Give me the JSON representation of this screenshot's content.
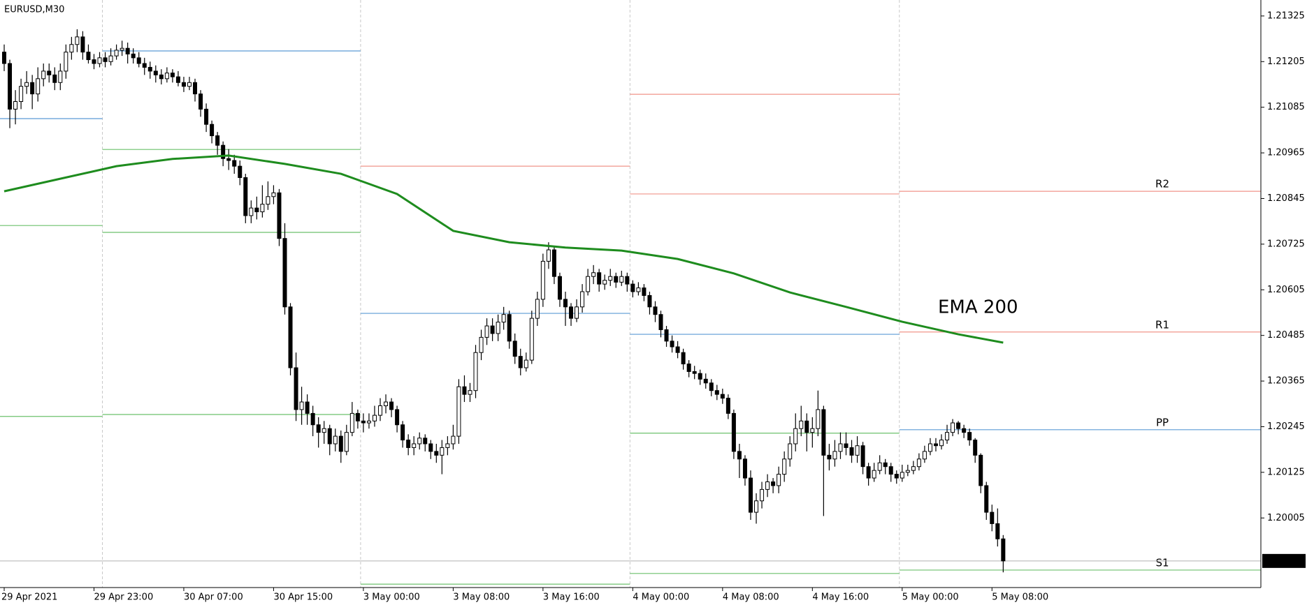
{
  "chart_data": {
    "type": "candlestick",
    "title": "EURUSD,M30",
    "up_color": "#ffffff",
    "down_color": "#000000",
    "outline": "#000000",
    "ylim": [
      1.19822,
      1.21367
    ],
    "yticks": [
      1.21325,
      1.21205,
      1.21085,
      1.20965,
      1.20845,
      1.20725,
      1.20605,
      1.20485,
      1.20365,
      1.20245,
      1.20125,
      1.20005
    ],
    "xticks": [
      {
        "value": 0,
        "label": "29 Apr 2021"
      },
      {
        "value": 16,
        "label": "29 Apr 23:00"
      },
      {
        "value": 32,
        "label": "30 Apr 07:00"
      },
      {
        "value": 48,
        "label": "30 Apr 15:00"
      },
      {
        "value": 64,
        "label": "3 May 00:00"
      },
      {
        "value": 80,
        "label": "3 May 08:00"
      },
      {
        "value": 96,
        "label": "3 May 16:00"
      },
      {
        "value": 112,
        "label": "4 May 00:00"
      },
      {
        "value": 128,
        "label": "4 May 08:00"
      },
      {
        "value": 144,
        "label": "4 May 16:00"
      },
      {
        "value": 160,
        "label": "5 May 00:00"
      },
      {
        "value": 176,
        "label": "5 May 08:00"
      }
    ],
    "separators": [
      18,
      64,
      112,
      160
    ],
    "bid": 1.19892,
    "ema": {
      "name": "EMA 200",
      "color": "#1e8c1e",
      "x": [
        0,
        10,
        20,
        30,
        40,
        50,
        60,
        70,
        80,
        90,
        100,
        110,
        120,
        130,
        140,
        150,
        160,
        170,
        178
      ],
      "values": [
        1.20864,
        1.20897,
        1.2093,
        1.20949,
        1.20958,
        1.20936,
        1.2091,
        1.20857,
        1.2076,
        1.2073,
        1.20716,
        1.20708,
        1.20686,
        1.20648,
        1.20598,
        1.2056,
        1.20521,
        1.20488,
        1.20466
      ]
    },
    "pivots": [
      {
        "from": 0,
        "to": 18,
        "value": 1.21055,
        "color": "#5b9bd5"
      },
      {
        "from": 0,
        "to": 18,
        "value": 1.20774,
        "color": "#6cc06c"
      },
      {
        "from": 0,
        "to": 18,
        "value": 1.20272,
        "color": "#6cc06c"
      },
      {
        "from": 18,
        "to": 64,
        "value": 1.21233,
        "color": "#5b9bd5"
      },
      {
        "from": 18,
        "to": 64,
        "value": 1.20974,
        "color": "#6cc06c"
      },
      {
        "from": 18,
        "to": 64,
        "value": 1.20756,
        "color": "#6cc06c"
      },
      {
        "from": 18,
        "to": 64,
        "value": 1.20277,
        "color": "#6cc06c"
      },
      {
        "from": 64,
        "to": 112,
        "value": 1.2093,
        "color": "#f0948a"
      },
      {
        "from": 64,
        "to": 112,
        "value": 1.20543,
        "color": "#5b9bd5"
      },
      {
        "from": 64,
        "to": 112,
        "value": 1.19831,
        "color": "#6cc06c"
      },
      {
        "from": 112,
        "to": 160,
        "value": 1.21119,
        "color": "#f0948a"
      },
      {
        "from": 112,
        "to": 160,
        "value": 1.20857,
        "color": "#f0948a"
      },
      {
        "from": 112,
        "to": 160,
        "value": 1.20488,
        "color": "#5b9bd5"
      },
      {
        "from": 112,
        "to": 160,
        "value": 1.20228,
        "color": "#6cc06c"
      },
      {
        "from": 112,
        "to": 160,
        "value": 1.19859,
        "color": "#6cc06c"
      },
      {
        "from": 160,
        "value": 1.20864,
        "color": "#f0948a",
        "name": "R2"
      },
      {
        "from": 160,
        "value": 1.20494,
        "color": "#f0948a",
        "name": "R1"
      },
      {
        "from": 160,
        "value": 1.20237,
        "color": "#5b9bd5",
        "name": "PP"
      },
      {
        "from": 160,
        "value": 1.19868,
        "color": "#6cc06c",
        "name": "S1"
      }
    ],
    "candles": [
      [
        1.2123,
        1.2125,
        1.2118,
        1.212
      ],
      [
        1.212,
        1.2121,
        1.2103,
        1.2108
      ],
      [
        1.2108,
        1.2113,
        1.2104,
        1.211
      ],
      [
        1.211,
        1.2116,
        1.2108,
        1.2114
      ],
      [
        1.2114,
        1.2118,
        1.2112,
        1.2115
      ],
      [
        1.2115,
        1.2117,
        1.2108,
        1.2112
      ],
      [
        1.2112,
        1.2119,
        1.211,
        1.2116
      ],
      [
        1.2116,
        1.212,
        1.2114,
        1.2118
      ],
      [
        1.2118,
        1.212,
        1.2115,
        1.2117
      ],
      [
        1.2117,
        1.2119,
        1.2113,
        1.2115
      ],
      [
        1.2115,
        1.212,
        1.2113,
        1.2118
      ],
      [
        1.2118,
        1.2125,
        1.2116,
        1.2123
      ],
      [
        1.2123,
        1.2127,
        1.2121,
        1.2125
      ],
      [
        1.2125,
        1.2129,
        1.2123,
        1.2127
      ],
      [
        1.2127,
        1.21285,
        1.2121,
        1.2123
      ],
      [
        1.2123,
        1.2125,
        1.212,
        1.2121
      ],
      [
        1.2121,
        1.21225,
        1.21185,
        1.212
      ],
      [
        1.212,
        1.2123,
        1.2119,
        1.21215
      ],
      [
        1.21215,
        1.2123,
        1.2119,
        1.21205
      ],
      [
        1.21205,
        1.2124,
        1.21195,
        1.2122
      ],
      [
        1.2122,
        1.2125,
        1.2121,
        1.21235
      ],
      [
        1.21235,
        1.2126,
        1.2122,
        1.2124
      ],
      [
        1.2124,
        1.21255,
        1.212,
        1.21225
      ],
      [
        1.21225,
        1.2124,
        1.212,
        1.21215
      ],
      [
        1.21215,
        1.2123,
        1.2119,
        1.212
      ],
      [
        1.212,
        1.21215,
        1.2117,
        1.2119
      ],
      [
        1.2119,
        1.21205,
        1.2116,
        1.2118
      ],
      [
        1.2118,
        1.21195,
        1.2115,
        1.2117
      ],
      [
        1.2117,
        1.21185,
        1.21145,
        1.2116
      ],
      [
        1.2116,
        1.2119,
        1.2115,
        1.21175
      ],
      [
        1.21175,
        1.21185,
        1.2115,
        1.21165
      ],
      [
        1.21165,
        1.2118,
        1.2114,
        1.2115
      ],
      [
        1.2115,
        1.21165,
        1.21125,
        1.2114
      ],
      [
        1.2114,
        1.21165,
        1.2113,
        1.2115
      ],
      [
        1.2115,
        1.2116,
        1.211,
        1.2112
      ],
      [
        1.2112,
        1.2113,
        1.2106,
        1.2108
      ],
      [
        1.2108,
        1.21095,
        1.2102,
        1.2104
      ],
      [
        1.2104,
        1.2105,
        1.2099,
        1.2101
      ],
      [
        1.2101,
        1.2102,
        1.2096,
        1.20985
      ],
      [
        1.20985,
        1.20995,
        1.2093,
        1.2095
      ],
      [
        1.2095,
        1.20975,
        1.2092,
        1.20945
      ],
      [
        1.20945,
        1.2096,
        1.2091,
        1.2093
      ],
      [
        1.2093,
        1.20945,
        1.2088,
        1.209
      ],
      [
        1.209,
        1.2091,
        1.2078,
        1.208
      ],
      [
        1.208,
        1.2084,
        1.2078,
        1.2082
      ],
      [
        1.2082,
        1.2085,
        1.2079,
        1.2081
      ],
      [
        1.2081,
        1.2088,
        1.20795,
        1.2083
      ],
      [
        1.2083,
        1.2089,
        1.20815,
        1.2085
      ],
      [
        1.2085,
        1.2088,
        1.2083,
        1.2086
      ],
      [
        1.2086,
        1.2087,
        1.2072,
        1.2074
      ],
      [
        1.2074,
        1.2078,
        1.2054,
        1.2056
      ],
      [
        1.2056,
        1.2057,
        1.2038,
        1.204
      ],
      [
        1.204,
        1.2044,
        1.2026,
        1.2029
      ],
      [
        1.2029,
        1.2035,
        1.2025,
        1.2031
      ],
      [
        1.2031,
        1.2033,
        1.2025,
        1.2028
      ],
      [
        1.2028,
        1.203,
        1.2022,
        1.2025
      ],
      [
        1.2025,
        1.2027,
        1.2019,
        1.2023
      ],
      [
        1.2023,
        1.2026,
        1.202,
        1.2024
      ],
      [
        1.2024,
        1.2025,
        1.2017,
        1.202
      ],
      [
        1.202,
        1.2024,
        1.2018,
        1.2022
      ],
      [
        1.2022,
        1.20235,
        1.2015,
        1.2018
      ],
      [
        1.2018,
        1.2025,
        1.2017,
        1.2023
      ],
      [
        1.2023,
        1.2031,
        1.2022,
        1.2028
      ],
      [
        1.2028,
        1.2029,
        1.2024,
        1.2026
      ],
      [
        1.2026,
        1.2028,
        1.2023,
        1.20255
      ],
      [
        1.20255,
        1.2028,
        1.2024,
        1.2026
      ],
      [
        1.2026,
        1.203,
        1.20245,
        1.20275
      ],
      [
        1.20275,
        1.2032,
        1.2026,
        1.203
      ],
      [
        1.203,
        1.2033,
        1.2028,
        1.2031
      ],
      [
        1.2031,
        1.2032,
        1.2027,
        1.2029
      ],
      [
        1.2029,
        1.203,
        1.2023,
        1.2025
      ],
      [
        1.2025,
        1.2026,
        1.2019,
        1.2021
      ],
      [
        1.2021,
        1.20225,
        1.2017,
        1.2019
      ],
      [
        1.2019,
        1.2022,
        1.2017,
        1.202
      ],
      [
        1.202,
        1.2023,
        1.20185,
        1.20215
      ],
      [
        1.20215,
        1.20225,
        1.2018,
        1.202
      ],
      [
        1.202,
        1.2021,
        1.2016,
        1.2018
      ],
      [
        1.2018,
        1.202,
        1.2015,
        1.2017
      ],
      [
        1.2017,
        1.2021,
        1.2012,
        1.2019
      ],
      [
        1.2019,
        1.2022,
        1.2017,
        1.202
      ],
      [
        1.202,
        1.2025,
        1.20185,
        1.2022
      ],
      [
        1.2022,
        1.2037,
        1.202,
        1.2035
      ],
      [
        1.2035,
        1.2038,
        1.2031,
        1.2033
      ],
      [
        1.2033,
        1.2036,
        1.2031,
        1.2034
      ],
      [
        1.2034,
        1.2046,
        1.2032,
        1.2044
      ],
      [
        1.2044,
        1.205,
        1.2042,
        1.2048
      ],
      [
        1.2048,
        1.2053,
        1.2046,
        1.2051
      ],
      [
        1.2051,
        1.2053,
        1.2047,
        1.2049
      ],
      [
        1.2049,
        1.2054,
        1.2047,
        1.2052
      ],
      [
        1.2052,
        1.2056,
        1.205,
        1.2054
      ],
      [
        1.2054,
        1.2055,
        1.2045,
        1.2047
      ],
      [
        1.2047,
        1.2049,
        1.2041,
        1.2043
      ],
      [
        1.2043,
        1.2045,
        1.2038,
        1.204
      ],
      [
        1.204,
        1.2044,
        1.2039,
        1.2042
      ],
      [
        1.2042,
        1.2055,
        1.2041,
        1.2053
      ],
      [
        1.2053,
        1.206,
        1.2051,
        1.2058
      ],
      [
        1.2058,
        1.207,
        1.2056,
        1.2068
      ],
      [
        1.2068,
        1.2073,
        1.2066,
        1.2071
      ],
      [
        1.2071,
        1.2072,
        1.2062,
        1.2064
      ],
      [
        1.2064,
        1.2065,
        1.2056,
        1.2058
      ],
      [
        1.2058,
        1.206,
        1.2051,
        1.2056
      ],
      [
        1.2056,
        1.2057,
        1.2051,
        1.2053
      ],
      [
        1.2053,
        1.2058,
        1.2052,
        1.2056
      ],
      [
        1.2056,
        1.2062,
        1.20545,
        1.206
      ],
      [
        1.206,
        1.2066,
        1.2059,
        1.2064
      ],
      [
        1.2064,
        1.2067,
        1.2062,
        1.2065
      ],
      [
        1.2065,
        1.2066,
        1.206,
        1.2062
      ],
      [
        1.2062,
        1.20645,
        1.20605,
        1.2063
      ],
      [
        1.2063,
        1.2066,
        1.20615,
        1.2064
      ],
      [
        1.2064,
        1.2065,
        1.2061,
        1.20625
      ],
      [
        1.20625,
        1.20655,
        1.20615,
        1.2064
      ],
      [
        1.2064,
        1.2065,
        1.206,
        1.2062
      ],
      [
        1.2062,
        1.2063,
        1.20585,
        1.206
      ],
      [
        1.206,
        1.20625,
        1.2059,
        1.2061
      ],
      [
        1.2061,
        1.2062,
        1.20575,
        1.2059
      ],
      [
        1.2059,
        1.206,
        1.2054,
        1.2056
      ],
      [
        1.2056,
        1.20575,
        1.2052,
        1.2054
      ],
      [
        1.2054,
        1.2055,
        1.2048,
        1.205
      ],
      [
        1.205,
        1.2051,
        1.20455,
        1.2047
      ],
      [
        1.2047,
        1.20485,
        1.2044,
        1.20455
      ],
      [
        1.20455,
        1.2047,
        1.20425,
        1.2044
      ],
      [
        1.2044,
        1.2045,
        1.20395,
        1.2041
      ],
      [
        1.2041,
        1.2042,
        1.20375,
        1.2039
      ],
      [
        1.2039,
        1.20405,
        1.2037,
        1.20385
      ],
      [
        1.20385,
        1.20395,
        1.20355,
        1.2037
      ],
      [
        1.2037,
        1.20385,
        1.20345,
        1.2036
      ],
      [
        1.2036,
        1.2037,
        1.20325,
        1.2034
      ],
      [
        1.2034,
        1.20355,
        1.20315,
        1.2033
      ],
      [
        1.2033,
        1.20345,
        1.20305,
        1.2032
      ],
      [
        1.2032,
        1.2033,
        1.20265,
        1.2028
      ],
      [
        1.2028,
        1.2029,
        1.2016,
        1.2018
      ],
      [
        1.2018,
        1.202,
        1.2011,
        1.2016
      ],
      [
        1.2016,
        1.2017,
        1.2009,
        1.2011
      ],
      [
        1.2011,
        1.2013,
        1.2,
        1.2002
      ],
      [
        1.2002,
        1.2007,
        1.1999,
        1.2005
      ],
      [
        1.2005,
        1.201,
        1.2003,
        1.2008
      ],
      [
        1.2008,
        1.2012,
        1.2006,
        1.201
      ],
      [
        1.201,
        1.2011,
        1.2007,
        1.2009
      ],
      [
        1.2009,
        1.2014,
        1.2007,
        1.2012
      ],
      [
        1.2012,
        1.2018,
        1.201,
        1.2016
      ],
      [
        1.2016,
        1.2022,
        1.2014,
        1.202
      ],
      [
        1.202,
        1.2028,
        1.2018,
        1.2024
      ],
      [
        1.2024,
        1.203,
        1.2022,
        1.2026
      ],
      [
        1.2026,
        1.2028,
        1.2018,
        1.2023
      ],
      [
        1.2023,
        1.2027,
        1.2019,
        1.2024
      ],
      [
        1.2024,
        1.2034,
        1.2022,
        1.2029
      ],
      [
        1.2029,
        1.203,
        1.2001,
        1.2017
      ],
      [
        1.2017,
        1.202,
        1.2013,
        1.2016
      ],
      [
        1.2016,
        1.2021,
        1.2014,
        1.2018
      ],
      [
        1.2018,
        1.2023,
        1.2016,
        1.202
      ],
      [
        1.202,
        1.2023,
        1.2017,
        1.2019
      ],
      [
        1.2019,
        1.2021,
        1.2015,
        1.2017
      ],
      [
        1.2017,
        1.2022,
        1.2015,
        1.20195
      ],
      [
        1.20195,
        1.20205,
        1.2012,
        1.2014
      ],
      [
        1.2014,
        1.2015,
        1.2009,
        1.2011
      ],
      [
        1.2011,
        1.2015,
        1.201,
        1.2013
      ],
      [
        1.2013,
        1.2017,
        1.2012,
        1.2015
      ],
      [
        1.2015,
        1.2016,
        1.2012,
        1.2014
      ],
      [
        1.2014,
        1.2015,
        1.201,
        1.2012
      ],
      [
        1.2012,
        1.2013,
        1.20095,
        1.2011
      ],
      [
        1.2011,
        1.20145,
        1.201,
        1.20125
      ],
      [
        1.20125,
        1.20145,
        1.20115,
        1.2013
      ],
      [
        1.2013,
        1.20155,
        1.2012,
        1.2014
      ],
      [
        1.2014,
        1.20175,
        1.2013,
        1.2016
      ],
      [
        1.2016,
        1.20195,
        1.2015,
        1.2018
      ],
      [
        1.2018,
        1.20215,
        1.2017,
        1.202
      ],
      [
        1.202,
        1.20215,
        1.2018,
        1.20195
      ],
      [
        1.20195,
        1.20225,
        1.20185,
        1.2021
      ],
      [
        1.2021,
        1.2025,
        1.202,
        1.2023
      ],
      [
        1.2023,
        1.20265,
        1.2022,
        1.20255
      ],
      [
        1.20255,
        1.2026,
        1.20225,
        1.2024
      ],
      [
        1.2024,
        1.2025,
        1.20215,
        1.2023
      ],
      [
        1.2023,
        1.2024,
        1.20195,
        1.2021
      ],
      [
        1.2021,
        1.20215,
        1.2015,
        1.2017
      ],
      [
        1.2017,
        1.20175,
        1.2007,
        1.2009
      ],
      [
        1.2009,
        1.201,
        1.2,
        1.2002
      ],
      [
        1.2002,
        1.2004,
        1.1997,
        1.1999
      ],
      [
        1.1999,
        1.2003,
        1.1993,
        1.1995
      ],
      [
        1.1995,
        1.1996,
        1.19862,
        1.19892
      ]
    ]
  }
}
